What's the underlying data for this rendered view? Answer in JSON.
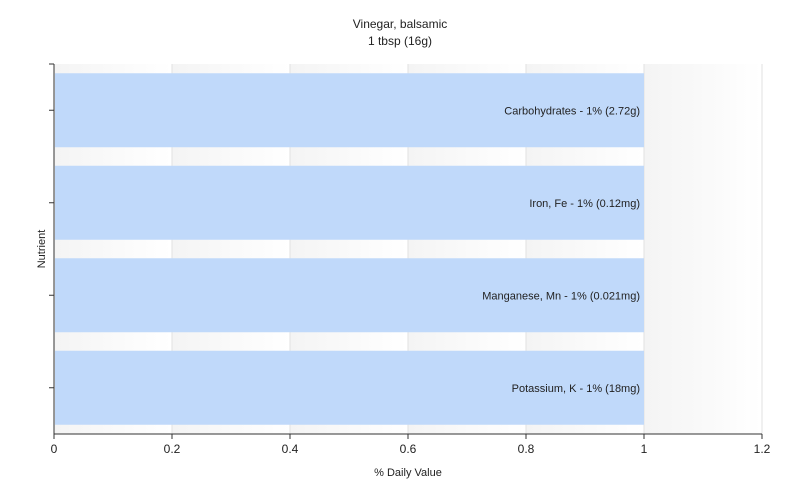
{
  "chart_data": {
    "type": "bar",
    "orientation": "horizontal",
    "title": "Vinegar, balsamic",
    "subtitle": "1 tbsp (16g)",
    "xlabel": "% Daily Value",
    "ylabel": "Nutrient",
    "xlim": [
      0,
      1.2
    ],
    "xticks": [
      "0",
      "0.2",
      "0.4",
      "0.6",
      "0.8",
      "1",
      "1.2"
    ],
    "grid": true,
    "legend": "none",
    "bar_color": "#c0d9fa",
    "categories": [
      "Carbohydrates",
      "Iron, Fe",
      "Manganese, Mn",
      "Potassium, K"
    ],
    "values": [
      1,
      1,
      1,
      1
    ],
    "bar_labels": [
      "Carbohydrates - 1% (2.72g)",
      "Iron, Fe - 1% (0.12mg)",
      "Manganese, Mn - 1% (0.021mg)",
      "Potassium, K - 1% (18mg)"
    ]
  }
}
